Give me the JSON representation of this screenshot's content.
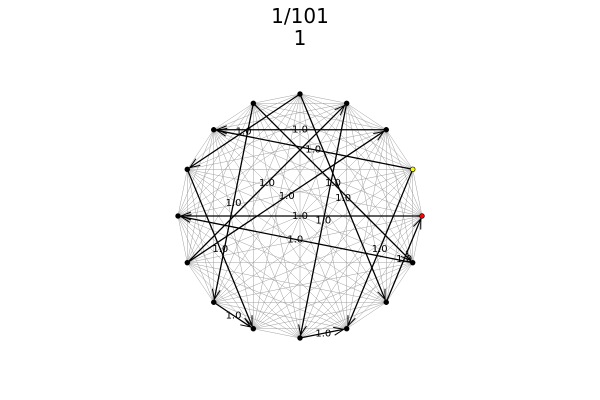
{
  "header": {
    "frame_label": "1/101",
    "step_label": "1"
  },
  "colors": {
    "background": "#ffffff",
    "node_default": "#000000",
    "node_start": "#ff0000",
    "node_current": "#ffff00",
    "edge_background": "#a0a0a0",
    "edge_tour": "#000000"
  },
  "graph": {
    "type": "complete-graph-tour",
    "node_count": 16,
    "start_node": 0,
    "current_node": 1,
    "tour_edges": [
      {
        "from": 0,
        "to": 8,
        "label": "1.0"
      },
      {
        "from": 1,
        "to": 13,
        "label": "1.0"
      },
      {
        "from": 1,
        "to": 6,
        "label": "1.0"
      },
      {
        "from": 2,
        "to": 6,
        "label": "1.0"
      },
      {
        "from": 3,
        "to": 12,
        "label": "1.0"
      },
      {
        "from": 4,
        "to": 7,
        "label": "1.0"
      },
      {
        "from": 4,
        "to": 14,
        "label": "1.0"
      },
      {
        "from": 5,
        "to": 15,
        "label": "1.0"
      },
      {
        "from": 5,
        "to": 10,
        "label": "1.0"
      },
      {
        "from": 7,
        "to": 11,
        "label": "1.0"
      },
      {
        "from": 9,
        "to": 3,
        "label": "1.0"
      },
      {
        "from": 9,
        "to": 2,
        "label": "1.0"
      },
      {
        "from": 10,
        "to": 11,
        "label": "1.0"
      },
      {
        "from": 12,
        "to": 13,
        "label": "1.0"
      },
      {
        "from": 14,
        "to": 0,
        "label": "1.0"
      },
      {
        "from": 15,
        "to": 8,
        "label": "1.0"
      }
    ]
  }
}
